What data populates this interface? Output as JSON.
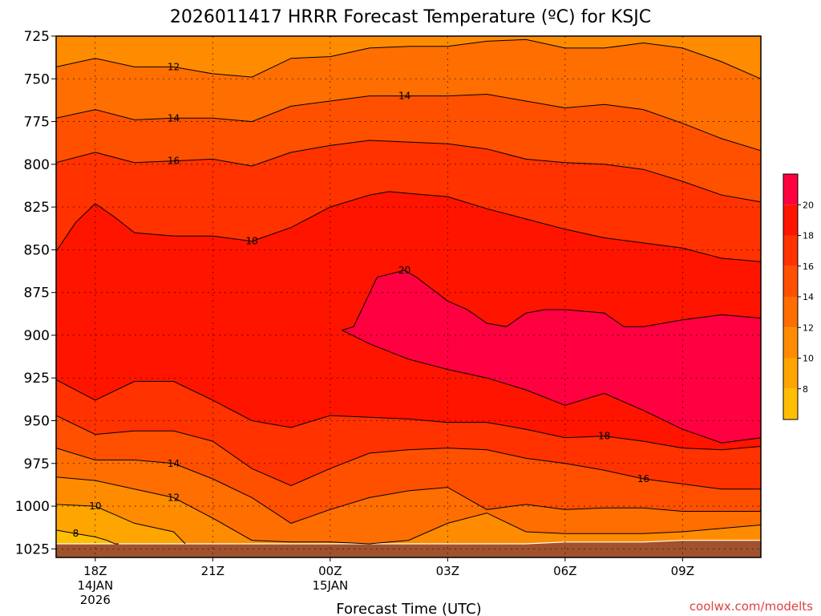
{
  "chart_data": {
    "type": "contour",
    "title": "2026011417 HRRR Forecast Temperature (ºC) for KSJC",
    "xlabel": "Forecast Time (UTC)",
    "credit": "coolwx.com/modelts",
    "x_ticks": [
      {
        "hour": 1,
        "lines": [
          "18Z",
          "14JAN",
          "2026"
        ]
      },
      {
        "hour": 4,
        "lines": [
          "21Z"
        ]
      },
      {
        "hour": 7,
        "lines": [
          "00Z",
          "15JAN"
        ]
      },
      {
        "hour": 10,
        "lines": [
          "03Z"
        ]
      },
      {
        "hour": 13,
        "lines": [
          "06Z"
        ]
      },
      {
        "hour": 16,
        "lines": [
          "09Z"
        ]
      }
    ],
    "xlim_hours": [
      0,
      18
    ],
    "y_axis_reversed": true,
    "ylim_hpa": [
      725,
      1030
    ],
    "y_ticks": [
      725,
      750,
      775,
      800,
      825,
      850,
      875,
      900,
      925,
      950,
      975,
      1000,
      1025
    ],
    "grid": "dotted",
    "ground_surface_hpa": [
      1022,
      1022,
      1022,
      1022,
      1022,
      1022,
      1022,
      1022,
      1022,
      1022,
      1022,
      1022,
      1022,
      1021,
      1021,
      1021,
      1020,
      1020,
      1020
    ],
    "contour_levels": [
      8,
      10,
      12,
      14,
      16,
      18,
      20
    ],
    "colorbar": {
      "position": "right",
      "labels": [
        "8",
        "10",
        "12",
        "14",
        "16",
        "18",
        "20"
      ],
      "colors": [
        "#ffbe00",
        "#ffa500",
        "#ff8c00",
        "#ff6e00",
        "#ff5000",
        "#ff3200",
        "#ff1400",
        "#ff0040"
      ]
    },
    "contours": [
      {
        "level": 12,
        "label": "12",
        "label_at_hour": 3,
        "hours": [
          0,
          1,
          2,
          3,
          4,
          5,
          6,
          7,
          8,
          9,
          10,
          11,
          12,
          13,
          14,
          15,
          16,
          17,
          18
        ],
        "hpa": [
          743,
          738,
          743,
          743,
          747,
          749,
          738,
          737,
          732,
          731,
          731,
          728,
          727,
          732,
          732,
          729,
          732,
          740,
          750
        ]
      },
      {
        "level": 14,
        "label": "14",
        "label_at_hour": 3,
        "hours": [
          0,
          1,
          2,
          3,
          4,
          5,
          6,
          7,
          8,
          9,
          10,
          11,
          12,
          13,
          14,
          15,
          16,
          17,
          18
        ],
        "hpa": [
          773,
          768,
          774,
          773,
          773,
          775,
          766,
          763,
          760,
          760,
          760,
          759,
          763,
          767,
          765,
          768,
          776,
          785,
          792
        ]
      },
      {
        "level": 14,
        "label": "14",
        "label_at_hour": 8.9,
        "hours": [],
        "hpa": []
      },
      {
        "level": 16,
        "label": "16",
        "label_at_hour": 3,
        "hours": [
          0,
          1,
          2,
          3,
          4,
          5,
          6,
          7,
          8,
          9,
          10,
          11,
          12,
          13,
          14,
          15,
          16,
          17,
          18
        ],
        "hpa": [
          799,
          793,
          799,
          798,
          797,
          801,
          793,
          789,
          786,
          787,
          788,
          791,
          797,
          799,
          800,
          803,
          810,
          818,
          822
        ]
      },
      {
        "level": 18,
        "label": "18",
        "label_at_hour": 5,
        "hours": [
          0,
          0.5,
          1,
          1.5,
          2,
          3,
          4,
          5,
          6,
          7,
          8,
          8.5,
          9,
          10,
          11,
          12,
          13,
          14,
          15,
          16,
          17,
          18
        ],
        "hpa": [
          851,
          834,
          823,
          831,
          840,
          842,
          842,
          845,
          837,
          825,
          818,
          816,
          817,
          819,
          826,
          832,
          838,
          843,
          846,
          849,
          855,
          857
        ]
      },
      {
        "level": 20,
        "label": "20",
        "label_at_hour": 8.9,
        "hours": [
          7.3,
          7.6,
          8.2,
          8.9,
          9.2,
          10,
          10.5,
          11,
          11.5,
          12,
          12.5,
          13,
          14,
          14.5,
          15,
          16,
          17,
          18,
          18,
          17,
          16,
          15,
          14,
          13,
          12,
          11,
          10,
          9,
          8,
          7.3
        ],
        "hpa": [
          897,
          895,
          866,
          862,
          866,
          880,
          885,
          893,
          895,
          887,
          885,
          885,
          887,
          895,
          895,
          891,
          888,
          890,
          960,
          963,
          955,
          944,
          934,
          941,
          932,
          925,
          920,
          914,
          905,
          897
        ]
      },
      {
        "level": 18,
        "label": "18",
        "label_at_hour": 14,
        "hours": [
          0,
          1,
          2,
          3,
          4,
          5,
          6,
          7,
          8,
          9,
          10,
          11,
          12,
          13,
          14,
          15,
          16,
          17,
          18
        ],
        "hpa": [
          926,
          938,
          927,
          927,
          938,
          950,
          954,
          947,
          948,
          949,
          951,
          951,
          955,
          960,
          959,
          962,
          966,
          967,
          965
        ]
      },
      {
        "level": 16,
        "label": "16",
        "label_at_hour": 15,
        "hours": [
          0,
          1,
          2,
          3,
          4,
          5,
          6,
          7,
          8,
          9,
          10,
          11,
          12,
          13,
          14,
          15,
          16,
          17,
          18
        ],
        "hpa": [
          947,
          958,
          956,
          956,
          962,
          978,
          988,
          978,
          969,
          967,
          966,
          967,
          972,
          975,
          979,
          984,
          987,
          990,
          990
        ]
      },
      {
        "level": 14,
        "label": "14",
        "label_at_hour": 3,
        "hours": [
          0,
          1,
          2,
          3,
          4,
          5,
          6,
          7,
          8,
          9,
          10,
          11,
          12,
          13,
          14,
          15,
          16,
          17,
          18
        ],
        "hpa": [
          966,
          973,
          973,
          975,
          984,
          995,
          1010,
          1002,
          995,
          991,
          989,
          1002,
          999,
          1002,
          1001,
          1001,
          1003,
          1003,
          1003
        ]
      },
      {
        "level": 12,
        "label": "12",
        "label_at_hour": 3,
        "hours": [
          0,
          1,
          2,
          3,
          4,
          5,
          6,
          7,
          8,
          9,
          10,
          11,
          12,
          13,
          14,
          15,
          16,
          17,
          18
        ],
        "hpa": [
          983,
          985,
          990,
          995,
          1007,
          1020,
          1021,
          1021,
          1022,
          1020,
          1010,
          1004,
          1015,
          1016,
          1016,
          1016,
          1015,
          1013,
          1011
        ]
      },
      {
        "level": 10,
        "label": "10",
        "label_at_hour": 1,
        "hours": [
          0,
          1,
          1.5,
          2,
          3,
          3.3
        ],
        "hpa": [
          999,
          1000,
          1005,
          1010,
          1015,
          1022
        ]
      },
      {
        "level": 8,
        "label": "8",
        "label_at_hour": 0.5,
        "hours": [
          0,
          0.5,
          1,
          1.3,
          1.5,
          1.6
        ],
        "hpa": [
          1014,
          1016,
          1018,
          1020,
          1022,
          1022
        ]
      }
    ]
  }
}
